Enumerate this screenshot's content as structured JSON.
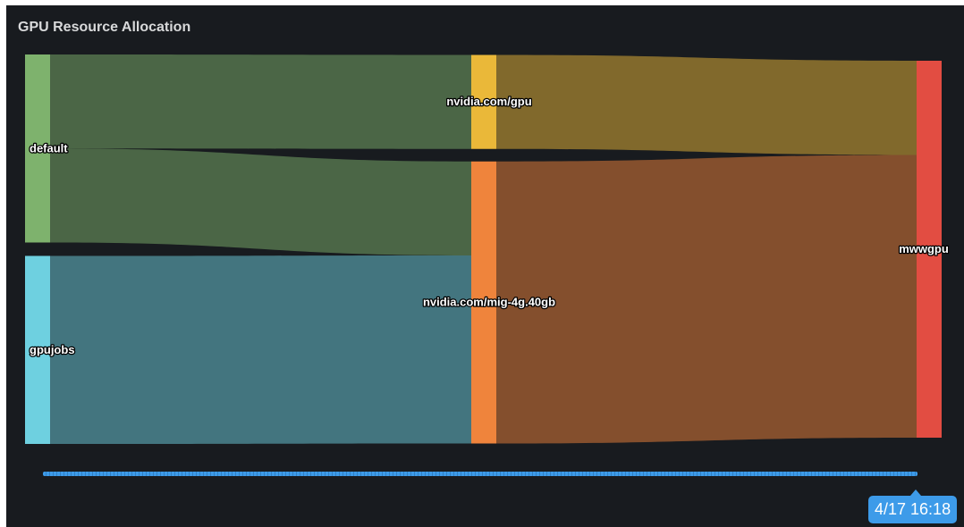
{
  "panel": {
    "title": "GPU Resource Allocation"
  },
  "timeline": {
    "tooltip": "4/17 16:18"
  },
  "chart_data": {
    "type": "sankey",
    "title": "GPU Resource Allocation",
    "nodes": [
      {
        "id": "default",
        "label": "default",
        "column": 0,
        "color": "#7eb26d"
      },
      {
        "id": "gpujobs",
        "label": "gpujobs",
        "column": 0,
        "color": "#6ed0e0"
      },
      {
        "id": "gpu",
        "label": "nvidia.com/gpu",
        "column": 1,
        "color": "#eab839"
      },
      {
        "id": "mig",
        "label": "nvidia.com/mig-4g.40gb",
        "column": 1,
        "color": "#ef843c"
      },
      {
        "id": "mwwgpu",
        "label": "mwwgpu",
        "column": 2,
        "color": "#e24d42"
      }
    ],
    "links": [
      {
        "source": "default",
        "target": "gpu",
        "value": 1
      },
      {
        "source": "default",
        "target": "mig",
        "value": 1
      },
      {
        "source": "gpujobs",
        "target": "mig",
        "value": 2
      },
      {
        "source": "gpu",
        "target": "mwwgpu",
        "value": 1
      },
      {
        "source": "mig",
        "target": "mwwgpu",
        "value": 3
      }
    ]
  }
}
